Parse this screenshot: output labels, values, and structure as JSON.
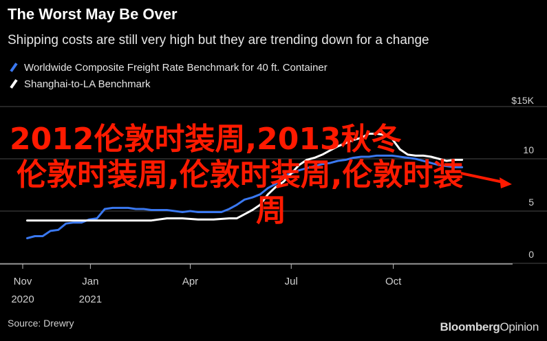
{
  "header": {
    "title": "The Worst May Be Over",
    "subtitle": "Shipping costs are still very high but they are trending down for a change"
  },
  "footer": {
    "source": "Source: Drewry",
    "brand_main": "Bloomberg",
    "brand_sub": "Opinion"
  },
  "overlay": {
    "line1": "2012伦敦时装周,2013秋冬",
    "line2": "伦敦时装周,伦敦时装周,伦敦时装",
    "line3": "周",
    "color": "#ff1a00"
  },
  "chart_data": {
    "type": "line",
    "title": "The Worst May Be Over",
    "subtitle": "Shipping costs are still very high but they are trending down for a change",
    "xlabel": "",
    "ylabel": "",
    "ylim": [
      0,
      15
    ],
    "yticks": [
      {
        "value": 0,
        "label": "0"
      },
      {
        "value": 5,
        "label": "5"
      },
      {
        "value": 10,
        "label": "10"
      },
      {
        "value": 15,
        "label": "$15K"
      }
    ],
    "xticks": [
      {
        "date": "2020-11-01",
        "label": "Nov",
        "year": "2020"
      },
      {
        "date": "2021-01-01",
        "label": "Jan",
        "year": "2021"
      },
      {
        "date": "2021-04-01",
        "label": "Apr",
        "year": ""
      },
      {
        "date": "2021-07-01",
        "label": "Jul",
        "year": ""
      },
      {
        "date": "2021-10-01",
        "label": "Oct",
        "year": ""
      }
    ],
    "xlim": [
      "2020-11-01",
      "2022-01-01"
    ],
    "grid": true,
    "legend_position": "top-left",
    "series": [
      {
        "name": "Worldwide Composite Freight Rate Benchmark for 40 ft. Container",
        "color": "#3a78f0",
        "points": [
          [
            "2020-11-05",
            2.4
          ],
          [
            "2020-11-12",
            2.6
          ],
          [
            "2020-11-19",
            2.6
          ],
          [
            "2020-11-26",
            3.1
          ],
          [
            "2020-12-03",
            3.2
          ],
          [
            "2020-12-10",
            3.8
          ],
          [
            "2020-12-17",
            3.9
          ],
          [
            "2020-12-24",
            3.9
          ],
          [
            "2020-12-31",
            4.2
          ],
          [
            "2021-01-07",
            4.3
          ],
          [
            "2021-01-14",
            5.2
          ],
          [
            "2021-01-21",
            5.3
          ],
          [
            "2021-01-28",
            5.3
          ],
          [
            "2021-02-04",
            5.3
          ],
          [
            "2021-02-11",
            5.2
          ],
          [
            "2021-02-18",
            5.2
          ],
          [
            "2021-02-25",
            5.1
          ],
          [
            "2021-03-04",
            5.1
          ],
          [
            "2021-03-11",
            5.1
          ],
          [
            "2021-03-18",
            5.0
          ],
          [
            "2021-03-25",
            4.9
          ],
          [
            "2021-04-01",
            5.0
          ],
          [
            "2021-04-08",
            4.9
          ],
          [
            "2021-04-15",
            4.9
          ],
          [
            "2021-04-22",
            4.9
          ],
          [
            "2021-04-29",
            4.9
          ],
          [
            "2021-05-06",
            5.2
          ],
          [
            "2021-05-13",
            5.6
          ],
          [
            "2021-05-20",
            6.1
          ],
          [
            "2021-05-27",
            6.3
          ],
          [
            "2021-06-03",
            6.6
          ],
          [
            "2021-06-10",
            7.2
          ],
          [
            "2021-06-17",
            7.6
          ],
          [
            "2021-06-24",
            8.4
          ],
          [
            "2021-07-01",
            8.6
          ],
          [
            "2021-07-08",
            8.9
          ],
          [
            "2021-07-15",
            9.1
          ],
          [
            "2021-07-22",
            9.3
          ],
          [
            "2021-07-29",
            9.5
          ],
          [
            "2021-08-05",
            9.6
          ],
          [
            "2021-08-12",
            9.8
          ],
          [
            "2021-08-19",
            9.9
          ],
          [
            "2021-08-26",
            10.1
          ],
          [
            "2021-09-02",
            10.2
          ],
          [
            "2021-09-09",
            10.2
          ],
          [
            "2021-09-16",
            10.3
          ],
          [
            "2021-09-23",
            10.3
          ],
          [
            "2021-09-30",
            10.3
          ],
          [
            "2021-10-07",
            10.2
          ],
          [
            "2021-10-14",
            10.1
          ],
          [
            "2021-10-21",
            10.0
          ],
          [
            "2021-10-28",
            9.8
          ],
          [
            "2021-11-04",
            9.6
          ],
          [
            "2021-11-11",
            9.4
          ],
          [
            "2021-11-18",
            9.3
          ],
          [
            "2021-11-25",
            9.2
          ],
          [
            "2021-12-02",
            9.2
          ]
        ]
      },
      {
        "name": "Shanghai-to-LA Benchmark",
        "color": "#ffffff",
        "points": [
          [
            "2020-11-05",
            4.1
          ],
          [
            "2020-11-26",
            4.1
          ],
          [
            "2020-12-17",
            4.1
          ],
          [
            "2020-12-31",
            4.1
          ],
          [
            "2021-01-14",
            4.1
          ],
          [
            "2021-02-04",
            4.1
          ],
          [
            "2021-02-25",
            4.1
          ],
          [
            "2021-03-11",
            4.3
          ],
          [
            "2021-03-25",
            4.3
          ],
          [
            "2021-04-08",
            4.2
          ],
          [
            "2021-04-22",
            4.2
          ],
          [
            "2021-05-06",
            4.3
          ],
          [
            "2021-05-13",
            4.3
          ],
          [
            "2021-05-20",
            4.7
          ],
          [
            "2021-05-27",
            5.1
          ],
          [
            "2021-06-03",
            5.6
          ],
          [
            "2021-06-10",
            6.6
          ],
          [
            "2021-06-17",
            7.3
          ],
          [
            "2021-06-24",
            7.8
          ],
          [
            "2021-07-01",
            8.6
          ],
          [
            "2021-07-08",
            9.4
          ],
          [
            "2021-07-15",
            9.9
          ],
          [
            "2021-07-22",
            10.1
          ],
          [
            "2021-07-29",
            10.4
          ],
          [
            "2021-08-05",
            10.8
          ],
          [
            "2021-08-12",
            11.2
          ],
          [
            "2021-08-19",
            11.5
          ],
          [
            "2021-08-26",
            11.8
          ],
          [
            "2021-09-02",
            12.0
          ],
          [
            "2021-09-09",
            12.4
          ],
          [
            "2021-09-16",
            12.4
          ],
          [
            "2021-09-23",
            12.3
          ],
          [
            "2021-09-30",
            11.9
          ],
          [
            "2021-10-07",
            10.9
          ],
          [
            "2021-10-14",
            10.4
          ],
          [
            "2021-10-21",
            10.3
          ],
          [
            "2021-10-28",
            10.3
          ],
          [
            "2021-11-04",
            10.2
          ],
          [
            "2021-11-11",
            10.0
          ],
          [
            "2021-11-18",
            9.8
          ],
          [
            "2021-11-25",
            9.9
          ],
          [
            "2021-12-02",
            9.9
          ]
        ]
      }
    ]
  }
}
